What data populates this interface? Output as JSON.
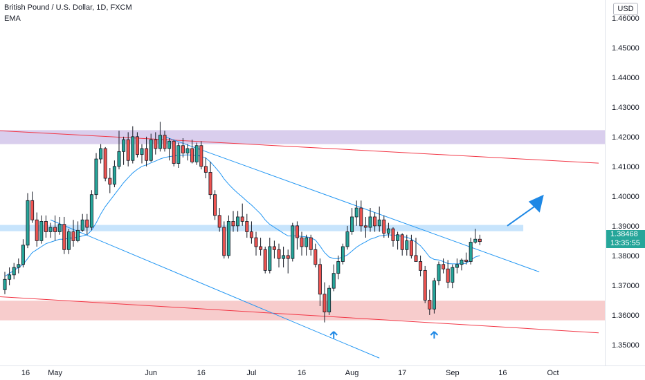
{
  "header": {
    "title": "British Pound / U.S. Dollar, 1D, FXCM",
    "indicator": "EMA"
  },
  "currency_button": "USD",
  "last_price": {
    "value": "1.38468",
    "countdown": "13:35:55",
    "color": "#26a69a"
  },
  "colors": {
    "up": "#26a69a",
    "down": "#ef5350",
    "candle_border": "#131722",
    "ema": "#2196f3",
    "trend_blue": "#2196f3",
    "trend_red": "#f23645",
    "zone_purple": "#b39ddb",
    "zone_blue": "#90caf9",
    "zone_red": "#ef9a9a",
    "arrow": "#1e88e5"
  },
  "chart_data": {
    "type": "candlestick",
    "symbol": "British Pound / U.S. Dollar",
    "timeframe": "1D",
    "y_axis": {
      "ticks": [
        1.35,
        1.36,
        1.37,
        1.38,
        1.39,
        1.4,
        1.41,
        1.42,
        1.43,
        1.44,
        1.45,
        1.46
      ],
      "range": [
        1.343,
        1.466
      ]
    },
    "x_axis": {
      "ticks": [
        {
          "label": "16",
          "index": 0
        },
        {
          "label": "May",
          "index": 11
        },
        {
          "label": "Jun",
          "index": 32
        },
        {
          "label": "16",
          "index": 43
        },
        {
          "label": "Jul",
          "index": 54
        },
        {
          "label": "16",
          "index": 65
        },
        {
          "label": "Aug",
          "index": 76
        },
        {
          "label": "17",
          "index": 87
        },
        {
          "label": "Sep",
          "index": 98
        },
        {
          "label": "16",
          "index": 109
        },
        {
          "label": "Oct",
          "index": 120
        }
      ]
    },
    "candles": [
      [
        1.3685,
        1.3745,
        1.367,
        1.372
      ],
      [
        1.372,
        1.376,
        1.37,
        1.3735
      ],
      [
        1.3735,
        1.3775,
        1.372,
        1.376
      ],
      [
        1.376,
        1.379,
        1.374,
        1.377
      ],
      [
        1.377,
        1.3855,
        1.376,
        1.3835
      ],
      [
        1.3835,
        1.401,
        1.3825,
        1.3985
      ],
      [
        1.3985,
        1.4015,
        1.391,
        1.392
      ],
      [
        1.392,
        1.3945,
        1.383,
        1.385
      ],
      [
        1.385,
        1.3935,
        1.384,
        1.3915
      ],
      [
        1.3915,
        1.3935,
        1.386,
        1.388
      ],
      [
        1.388,
        1.391,
        1.386,
        1.3895
      ],
      [
        1.3895,
        1.3935,
        1.385,
        1.388
      ],
      [
        1.388,
        1.393,
        1.387,
        1.3905
      ],
      [
        1.3905,
        1.393,
        1.3805,
        1.382
      ],
      [
        1.382,
        1.389,
        1.3805,
        1.388
      ],
      [
        1.388,
        1.392,
        1.383,
        1.385
      ],
      [
        1.385,
        1.3915,
        1.3845,
        1.3885
      ],
      [
        1.3885,
        1.394,
        1.388,
        1.392
      ],
      [
        1.392,
        1.394,
        1.387,
        1.3895
      ],
      [
        1.3895,
        1.402,
        1.3885,
        1.4005
      ],
      [
        1.4005,
        1.4145,
        1.399,
        1.4125
      ],
      [
        1.4125,
        1.4175,
        1.411,
        1.416
      ],
      [
        1.416,
        1.4165,
        1.405,
        1.406
      ],
      [
        1.406,
        1.4095,
        1.401,
        1.404
      ],
      [
        1.404,
        1.412,
        1.403,
        1.41
      ],
      [
        1.41,
        1.422,
        1.409,
        1.415
      ],
      [
        1.415,
        1.42,
        1.4105,
        1.419
      ],
      [
        1.419,
        1.4215,
        1.41,
        1.412
      ],
      [
        1.412,
        1.4235,
        1.411,
        1.42
      ],
      [
        1.42,
        1.4215,
        1.413,
        1.414
      ],
      [
        1.414,
        1.4175,
        1.411,
        1.416
      ],
      [
        1.416,
        1.42,
        1.41,
        1.412
      ],
      [
        1.412,
        1.421,
        1.4115,
        1.419
      ],
      [
        1.419,
        1.4215,
        1.414,
        1.416
      ],
      [
        1.416,
        1.425,
        1.415,
        1.4205
      ],
      [
        1.4205,
        1.422,
        1.415,
        1.416
      ],
      [
        1.416,
        1.4195,
        1.412,
        1.4185
      ],
      [
        1.4185,
        1.419,
        1.41,
        1.411
      ],
      [
        1.411,
        1.418,
        1.4095,
        1.417
      ],
      [
        1.417,
        1.4195,
        1.413,
        1.4145
      ],
      [
        1.4145,
        1.4175,
        1.412,
        1.416
      ],
      [
        1.416,
        1.419,
        1.411,
        1.4115
      ],
      [
        1.4115,
        1.418,
        1.4105,
        1.417
      ],
      [
        1.417,
        1.4185,
        1.409,
        1.41
      ],
      [
        1.41,
        1.413,
        1.406,
        1.408
      ],
      [
        1.408,
        1.4115,
        1.399,
        1.4005
      ],
      [
        1.4005,
        1.402,
        1.392,
        1.3935
      ],
      [
        1.3935,
        1.396,
        1.388,
        1.3895
      ],
      [
        1.3895,
        1.3915,
        1.379,
        1.38
      ],
      [
        1.38,
        1.3935,
        1.379,
        1.3915
      ],
      [
        1.3915,
        1.395,
        1.388,
        1.39
      ],
      [
        1.39,
        1.395,
        1.388,
        1.393
      ],
      [
        1.393,
        1.3975,
        1.39,
        1.3915
      ],
      [
        1.3915,
        1.394,
        1.386,
        1.388
      ],
      [
        1.388,
        1.3915,
        1.384,
        1.386
      ],
      [
        1.386,
        1.388,
        1.38,
        1.383
      ],
      [
        1.383,
        1.386,
        1.38,
        1.382
      ],
      [
        1.382,
        1.383,
        1.374,
        1.375
      ],
      [
        1.375,
        1.386,
        1.374,
        1.383
      ],
      [
        1.383,
        1.385,
        1.379,
        1.382
      ],
      [
        1.382,
        1.384,
        1.376,
        1.379
      ],
      [
        1.379,
        1.383,
        1.376,
        1.38
      ],
      [
        1.38,
        1.382,
        1.374,
        1.379
      ],
      [
        1.379,
        1.391,
        1.378,
        1.39
      ],
      [
        1.39,
        1.3915,
        1.382,
        1.386
      ],
      [
        1.386,
        1.388,
        1.38,
        1.383
      ],
      [
        1.383,
        1.387,
        1.38,
        1.386
      ],
      [
        1.386,
        1.387,
        1.38,
        1.382
      ],
      [
        1.382,
        1.384,
        1.376,
        1.377
      ],
      [
        1.377,
        1.379,
        1.363,
        1.367
      ],
      [
        1.367,
        1.371,
        1.3575,
        1.361
      ],
      [
        1.361,
        1.37,
        1.36,
        1.369
      ],
      [
        1.369,
        1.377,
        1.368,
        1.374
      ],
      [
        1.374,
        1.38,
        1.372,
        1.378
      ],
      [
        1.378,
        1.384,
        1.377,
        1.383
      ],
      [
        1.383,
        1.39,
        1.382,
        1.388
      ],
      [
        1.388,
        1.396,
        1.387,
        1.393
      ],
      [
        1.393,
        1.3985,
        1.39,
        1.396
      ],
      [
        1.396,
        1.3985,
        1.388,
        1.39
      ],
      [
        1.39,
        1.393,
        1.386,
        1.3895
      ],
      [
        1.3895,
        1.396,
        1.388,
        1.393
      ],
      [
        1.393,
        1.3945,
        1.388,
        1.39
      ],
      [
        1.39,
        1.3965,
        1.388,
        1.392
      ],
      [
        1.392,
        1.3935,
        1.386,
        1.3875
      ],
      [
        1.3875,
        1.391,
        1.386,
        1.389
      ],
      [
        1.389,
        1.3895,
        1.383,
        1.385
      ],
      [
        1.385,
        1.388,
        1.382,
        1.387
      ],
      [
        1.387,
        1.3875,
        1.38,
        1.382
      ],
      [
        1.382,
        1.387,
        1.38,
        1.385
      ],
      [
        1.385,
        1.387,
        1.379,
        1.38
      ],
      [
        1.38,
        1.386,
        1.378,
        1.378
      ],
      [
        1.378,
        1.38,
        1.373,
        1.375
      ],
      [
        1.375,
        1.3765,
        1.364,
        1.365
      ],
      [
        1.365,
        1.3685,
        1.36,
        1.362
      ],
      [
        1.362,
        1.3725,
        1.3605,
        1.3715
      ],
      [
        1.3715,
        1.378,
        1.37,
        1.377
      ],
      [
        1.377,
        1.379,
        1.374,
        1.3755
      ],
      [
        1.3755,
        1.3785,
        1.369,
        1.371
      ],
      [
        1.371,
        1.377,
        1.369,
        1.376
      ],
      [
        1.376,
        1.379,
        1.374,
        1.377
      ],
      [
        1.377,
        1.379,
        1.375,
        1.3785
      ],
      [
        1.3785,
        1.381,
        1.377,
        1.378
      ],
      [
        1.378,
        1.386,
        1.377,
        1.3845
      ],
      [
        1.3845,
        1.389,
        1.384,
        1.3855
      ],
      [
        1.3855,
        1.387,
        1.3835,
        1.3847
      ]
    ],
    "ema_values": [
      1.373,
      1.374,
      1.375,
      1.376,
      1.377,
      1.379,
      1.381,
      1.382,
      1.383,
      1.384,
      1.3845,
      1.385,
      1.3855,
      1.3855,
      1.3858,
      1.386,
      1.3862,
      1.3866,
      1.387,
      1.3885,
      1.391,
      1.394,
      1.3965,
      1.3985,
      1.4005,
      1.4025,
      1.4045,
      1.4062,
      1.4078,
      1.409,
      1.41,
      1.4105,
      1.4112,
      1.4118,
      1.4125,
      1.413,
      1.4133,
      1.4135,
      1.4137,
      1.4138,
      1.4139,
      1.4138,
      1.4137,
      1.4134,
      1.4128,
      1.4115,
      1.4098,
      1.408,
      1.4058,
      1.404,
      1.4024,
      1.401,
      1.3997,
      1.3983,
      1.397,
      1.3955,
      1.394,
      1.392,
      1.3905,
      1.3895,
      1.3885,
      1.3875,
      1.3866,
      1.3866,
      1.3866,
      1.3864,
      1.3863,
      1.386,
      1.3852,
      1.3832,
      1.381,
      1.3795,
      1.379,
      1.379,
      1.3795,
      1.3802,
      1.3815,
      1.3828,
      1.3838,
      1.3846,
      1.3855,
      1.386,
      1.3866,
      1.3868,
      1.387,
      1.3868,
      1.3868,
      1.3863,
      1.3862,
      1.3855,
      1.3845,
      1.3833,
      1.3815,
      1.3795,
      1.3787,
      1.3785,
      1.378,
      1.3773,
      1.3772,
      1.3772,
      1.3773,
      1.3774,
      1.3785,
      1.3795,
      1.38
    ],
    "lines": [
      {
        "name": "red-upper",
        "color": "#f23645",
        "from": [
          -7,
          1.4225
        ],
        "to": [
          130,
          1.4111
        ]
      },
      {
        "name": "red-lower",
        "color": "#f23645",
        "from": [
          -7,
          1.3667
        ],
        "to": [
          130,
          1.354
        ]
      },
      {
        "name": "blue-upper",
        "color": "#2196f3",
        "from": [
          35,
          1.42
        ],
        "to": [
          117,
          1.3745
        ]
      },
      {
        "name": "blue-lower",
        "color": "#2196f3",
        "from": [
          10,
          1.392
        ],
        "to": [
          82,
          1.3455
        ]
      }
    ],
    "zones": [
      {
        "name": "resistance-zone",
        "color": "#b39ddb",
        "y1": 1.4222,
        "y2": 1.4175,
        "x_end": "full"
      },
      {
        "name": "pivot-zone",
        "color": "#90caf9",
        "y1": 1.3903,
        "y2": 1.3882,
        "x_end": 113.5
      },
      {
        "name": "support-zone",
        "color": "#ef9a9a",
        "y1": 1.3648,
        "y2": 1.3582,
        "x_end": "full"
      }
    ],
    "arrows": [
      {
        "name": "bullish-arrow",
        "from": [
          110,
          1.39
        ],
        "to": [
          118,
          1.4005
        ]
      }
    ],
    "markers": [
      {
        "name": "up-marker-jul",
        "index": 72,
        "price": 1.353
      },
      {
        "name": "up-marker-aug",
        "index": 94,
        "price": 1.353
      }
    ]
  }
}
